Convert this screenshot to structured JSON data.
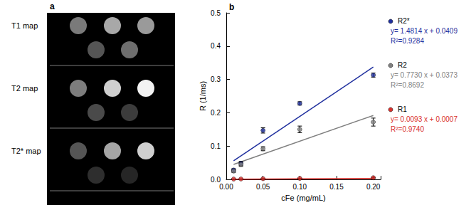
{
  "image_panel": {
    "label": "a",
    "rows": [
      "T1 map",
      "T2 map",
      "T2* map"
    ]
  },
  "chart_data": {
    "type": "scatter",
    "title": "b",
    "x_label": "cFe (mg/mL)",
    "y_label": "R (1/ms)",
    "xlim": [
      0,
      0.21
    ],
    "xticks": [
      {
        "value": 0,
        "label": "0.00"
      },
      {
        "value": 0.05,
        "label": "0.05"
      },
      {
        "value": 0.1,
        "label": "0.10"
      },
      {
        "value": 0.15,
        "label": "0.15"
      },
      {
        "value": 0.2,
        "label": "0.20"
      }
    ],
    "ylim": [
      0,
      0.5
    ],
    "yticks": [
      {
        "value": 0,
        "label": "0.0"
      },
      {
        "value": 0.1,
        "label": "0.1"
      },
      {
        "value": 0.2,
        "label": "0.2"
      },
      {
        "value": 0.3,
        "label": "0.3"
      },
      {
        "value": 0.4,
        "label": "0.4"
      },
      {
        "value": 0.5,
        "label": "0.5"
      }
    ],
    "grid": false,
    "legend": "right",
    "x": [
      0.01,
      0.02,
      0.05,
      0.1,
      0.2
    ],
    "series": [
      {
        "name": "R2*",
        "color": "#1f2f9e",
        "marker": "circle",
        "values": [
          0.028,
          0.048,
          0.147,
          0.228,
          0.313
        ],
        "errors": [
          0.004,
          0.006,
          0.008,
          0.005,
          0.006
        ],
        "equation": "y= 1.4814 x + 0.0409",
        "r_squared": "R²=0.9284",
        "fit": {
          "x": [
            0.01,
            0.2
          ],
          "values": [
            0.0557,
            0.3372
          ]
        }
      },
      {
        "name": "R2",
        "color": "#7f7f7f",
        "marker": "circle",
        "values": [
          0.025,
          0.045,
          0.092,
          0.15,
          0.172
        ],
        "errors": [
          0.004,
          0.006,
          0.006,
          0.01,
          0.012
        ],
        "equation": "y= 0.7730 x + 0.0373",
        "r_squared": "R²=0.8692",
        "fit": {
          "x": [
            0.01,
            0.2
          ],
          "values": [
            0.045,
            0.1919
          ]
        }
      },
      {
        "name": "R1",
        "color": "#d9302c",
        "marker": "circle",
        "values": [
          0.001,
          0.0012,
          0.002,
          0.003,
          0.005
        ],
        "errors": [
          0.0005,
          0.0005,
          0.0005,
          0.0005,
          0.0008
        ],
        "equation": "y= 0.0093 x + 0.0007",
        "r_squared": "R²=0.9740",
        "fit": {
          "x": [
            0.01,
            0.2
          ],
          "values": [
            0.0008,
            0.0026
          ]
        }
      }
    ]
  }
}
